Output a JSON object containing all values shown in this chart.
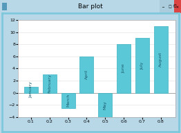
{
  "title": "Bar plot",
  "x_positions": [
    0.1,
    0.2,
    0.3,
    0.4,
    0.5,
    0.6,
    0.7,
    0.8
  ],
  "bar_heights": [
    1,
    3,
    -2.5,
    6,
    -4,
    8,
    9,
    11
  ],
  "bar_labels": [
    "January",
    "February",
    "March",
    "April",
    "May",
    "June",
    "July",
    "August"
  ],
  "bar_color": "#5bc8d8",
  "bar_edge_color": "#3ab0c0",
  "bar_width": 0.075,
  "ylim": [
    -4,
    12
  ],
  "xlim": [
    0.03,
    0.88
  ],
  "yticks": [
    -4,
    -2,
    0,
    2,
    4,
    6,
    8,
    10,
    12
  ],
  "xticks": [
    0.1,
    0.2,
    0.3,
    0.4,
    0.5,
    0.6,
    0.7,
    0.8
  ],
  "window_bg": "#b8d8e8",
  "title_bar_bg": "#7ec8dc",
  "plot_bg": "#ffffff",
  "border_color": "#7ec8dc",
  "label_fontsize": 4.5,
  "title_fontsize": 6.5,
  "tick_fontsize": 4.5
}
